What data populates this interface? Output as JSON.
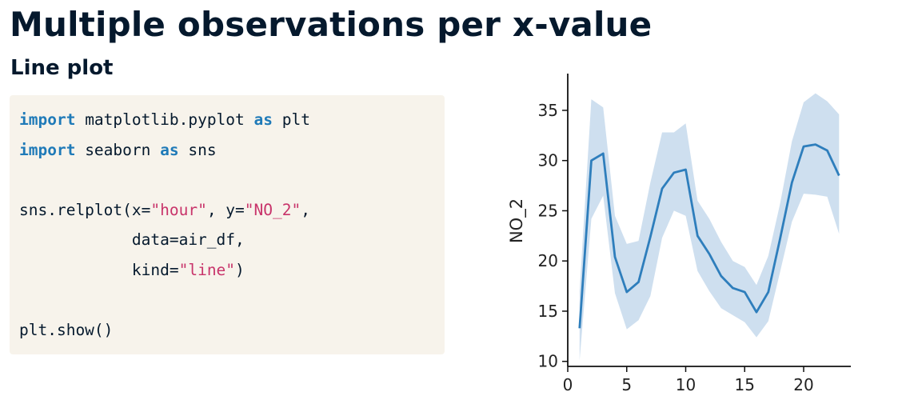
{
  "slide": {
    "title": "Multiple observations per x-value",
    "subtitle": "Line plot"
  },
  "code": {
    "line1": {
      "kw1": "import",
      "mid": " matplotlib.pyplot ",
      "kw2": "as",
      "end": " plt"
    },
    "line2": {
      "kw1": "import",
      "mid": " seaborn ",
      "kw2": "as",
      "end": " sns"
    },
    "line3": {
      "pre": "sns.relplot(x=",
      "s1": "\"hour\"",
      "mid": ", y=",
      "s2": "\"NO_2\"",
      "end": ","
    },
    "line4": "            data=air_df,",
    "line5": {
      "pre": "            kind=",
      "s1": "\"line\"",
      "end": ")"
    },
    "line6": "plt.show()"
  },
  "chart_data": {
    "type": "line",
    "xlabel": "",
    "ylabel": "NO_2",
    "xlim": [
      0,
      24
    ],
    "ylim": [
      9.5,
      38.5
    ],
    "xticks": [
      0,
      5,
      10,
      15,
      20
    ],
    "yticks": [
      10,
      15,
      20,
      25,
      30,
      35
    ],
    "x": [
      1,
      2,
      3,
      4,
      5,
      6,
      7,
      8,
      9,
      10,
      11,
      12,
      13,
      14,
      15,
      16,
      17,
      18,
      19,
      20,
      21,
      22,
      23
    ],
    "series": [
      {
        "values": [
          13.3,
          30.0,
          30.7,
          20.4,
          16.9,
          17.9,
          22.4,
          27.2,
          28.8,
          29.1,
          22.5,
          20.7,
          18.5,
          17.3,
          16.9,
          14.9,
          16.9,
          22.2,
          27.8,
          31.4,
          31.6,
          31.0,
          28.5
        ],
        "ci_lower": [
          10.1,
          24.2,
          26.5,
          16.8,
          13.2,
          14.1,
          16.5,
          22.3,
          25.0,
          24.5,
          19.0,
          17.0,
          15.3,
          14.6,
          13.9,
          12.4,
          14.0,
          18.9,
          23.9,
          26.7,
          26.6,
          26.4,
          22.7
        ],
        "ci_upper": [
          17.0,
          36.1,
          35.3,
          24.5,
          21.7,
          22.0,
          27.8,
          32.8,
          32.8,
          33.7,
          26.0,
          24.2,
          21.9,
          20.0,
          19.4,
          17.6,
          20.5,
          25.7,
          31.9,
          35.8,
          36.7,
          35.9,
          34.6
        ],
        "color": "#2e7ebc",
        "band_color": "#c5d9ec"
      }
    ],
    "grid": false
  }
}
